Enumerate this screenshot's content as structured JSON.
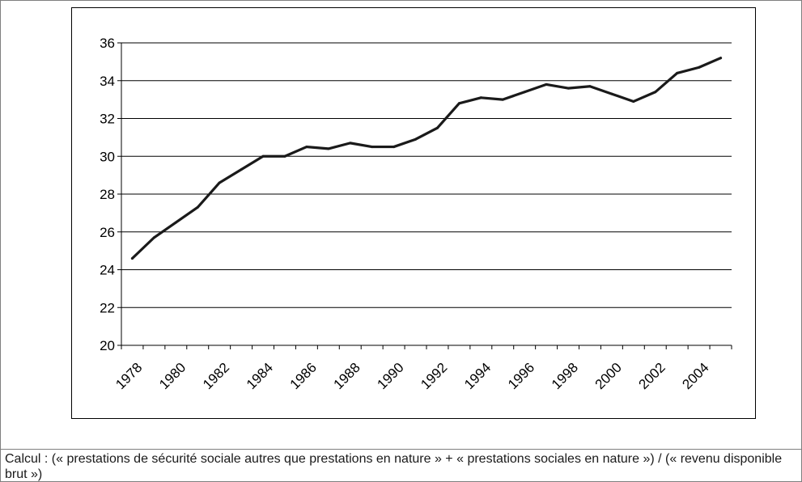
{
  "caption": "Calcul : (« prestations de sécurité sociale autres que prestations en nature » + « prestations sociales en nature ») / (« revenu disponible brut »)",
  "chart_data": {
    "type": "line",
    "title": "",
    "xlabel": "",
    "ylabel": "",
    "ylim": [
      20,
      36
    ],
    "yticks": [
      20,
      22,
      24,
      26,
      28,
      30,
      32,
      34,
      36
    ],
    "xtick_labels": [
      "1978",
      "1980",
      "1982",
      "1984",
      "1986",
      "1988",
      "1990",
      "1992",
      "1994",
      "1996",
      "1998",
      "2000",
      "2002",
      "2004"
    ],
    "grid": "horizontal",
    "line_color": "#1a1a1a",
    "series": [
      {
        "x": [
          1978,
          1979,
          1980,
          1981,
          1982,
          1983,
          1984,
          1985,
          1986,
          1987,
          1988,
          1989,
          1990,
          1991,
          1992,
          1993,
          1994,
          1995,
          1996,
          1997,
          1998,
          1999,
          2000,
          2001,
          2002,
          2003,
          2004,
          2005
        ],
        "values": [
          24.6,
          25.7,
          26.5,
          27.3,
          28.6,
          29.3,
          30.0,
          30.0,
          30.5,
          30.4,
          30.7,
          30.5,
          30.5,
          30.9,
          31.5,
          32.8,
          33.1,
          33.0,
          33.4,
          33.8,
          33.6,
          33.7,
          33.3,
          32.9,
          33.4,
          34.4,
          34.7,
          35.2
        ]
      }
    ]
  }
}
